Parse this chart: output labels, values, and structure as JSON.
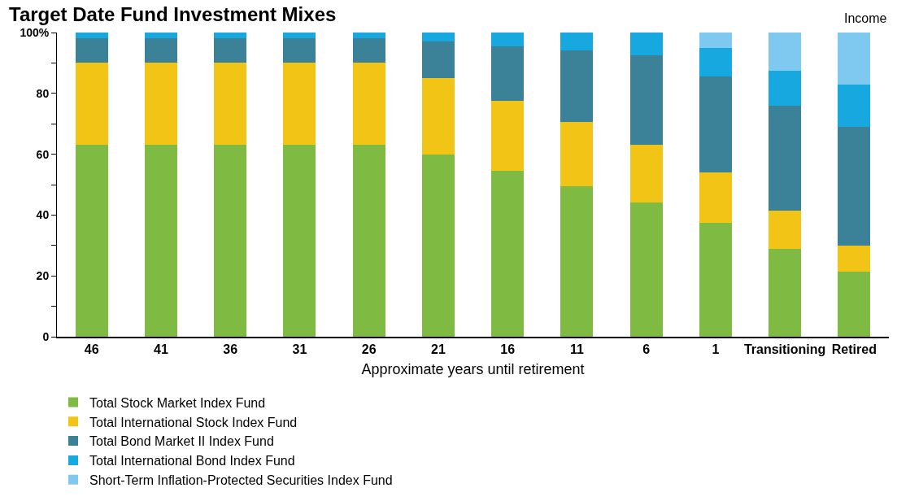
{
  "chart_data": {
    "type": "bar",
    "stacked": true,
    "title": "Target Date Fund Investment Mixes",
    "xlabel": "Approximate years until retirement",
    "categories": [
      "46",
      "41",
      "36",
      "31",
      "26",
      "21",
      "16",
      "11",
      "6",
      "1",
      "Transitioning",
      "Retired"
    ],
    "series": [
      {
        "name": "Total Stock Market Index Fund",
        "color": "#7fba42",
        "values": [
          63,
          63,
          63,
          63,
          63,
          60,
          54.5,
          49.5,
          44,
          37.5,
          29,
          21.5
        ]
      },
      {
        "name": "Total International Stock Index Fund",
        "color": "#f2c415",
        "values": [
          27,
          27,
          27,
          27,
          27,
          25,
          23,
          21,
          19,
          16.5,
          12.5,
          8.5
        ]
      },
      {
        "name": "Total Bond Market II Index Fund",
        "color": "#3b8299",
        "values": [
          8,
          8,
          8,
          8,
          8,
          12,
          18,
          23.5,
          29.5,
          31.5,
          34.5,
          39
        ]
      },
      {
        "name": "Total International Bond Index Fund",
        "color": "#17a8e0",
        "values": [
          2,
          2,
          2,
          2,
          2,
          3,
          4.5,
          6,
          7.5,
          9.5,
          11.5,
          14
        ]
      },
      {
        "name": "Short-Term Inflation-Protected Securities Index Fund",
        "color": "#7fc8ef",
        "values": [
          0,
          0,
          0,
          0,
          0,
          0,
          0,
          0,
          0,
          5,
          12.5,
          17
        ]
      }
    ],
    "ylim": [
      0,
      100
    ],
    "yticks": [
      0,
      {
        "value": 10,
        "label": null
      },
      20,
      {
        "value": 30,
        "label": null
      },
      40,
      {
        "value": 50,
        "label": null
      },
      60,
      {
        "value": 70,
        "label": null
      },
      80,
      {
        "value": 90,
        "label": null
      },
      {
        "value": 100,
        "label": "100%"
      }
    ],
    "annotations": [
      "Income"
    ],
    "grid": false,
    "legend": "bottom left"
  }
}
